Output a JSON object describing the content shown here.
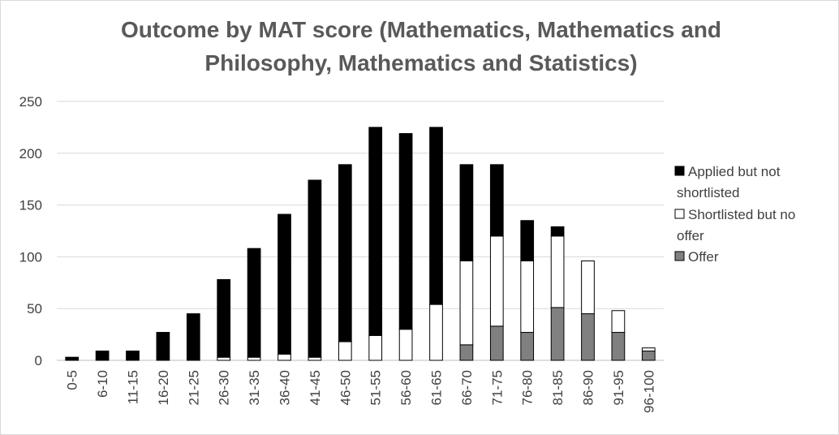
{
  "chart_data": {
    "type": "bar",
    "stacked": true,
    "title": "Outcome by MAT score (Mathematics, Mathematics and Philosophy, Mathematics and Statistics)",
    "title_lines": [
      "Outcome by MAT score (Mathematics, Mathematics and",
      "Philosophy, Mathematics and Statistics)"
    ],
    "xlabel": "",
    "ylabel": "",
    "ylim": [
      0,
      250
    ],
    "yticks": [
      0,
      50,
      100,
      150,
      200,
      250
    ],
    "grid": true,
    "legend_position": "right",
    "categories": [
      "0-5",
      "6-10",
      "11-15",
      "16-20",
      "21-25",
      "26-30",
      "31-35",
      "36-40",
      "41-45",
      "46-50",
      "51-55",
      "56-60",
      "61-65",
      "66-70",
      "71-75",
      "76-80",
      "81-85",
      "86-90",
      "91-95",
      "96-100"
    ],
    "series": [
      {
        "name": "Offer",
        "color": "#808080",
        "values": [
          0,
          0,
          0,
          0,
          0,
          0,
          0,
          0,
          0,
          0,
          0,
          0,
          0,
          15,
          33,
          27,
          51,
          45,
          27,
          9
        ]
      },
      {
        "name": "Shortlisted but no offer",
        "color": "#ffffff",
        "values": [
          0,
          0,
          0,
          0,
          0,
          3,
          3,
          6,
          3,
          18,
          24,
          30,
          54,
          81,
          87,
          69,
          69,
          51,
          21,
          3
        ]
      },
      {
        "name": "Applied but not shortlisted",
        "color": "#000000",
        "values": [
          3,
          9,
          9,
          27,
          45,
          75,
          105,
          135,
          171,
          171,
          201,
          189,
          171,
          93,
          69,
          39,
          9,
          0,
          0,
          0
        ]
      }
    ],
    "legend": [
      {
        "name_lines": [
          "Applied but not",
          "shortlisted"
        ],
        "color": "#000000"
      },
      {
        "name_lines": [
          "Shortlisted but no",
          "offer"
        ],
        "color": "#ffffff"
      },
      {
        "name_lines": [
          "Offer"
        ],
        "color": "#808080"
      }
    ],
    "colors": {
      "grid": "#d9d9d9",
      "text": "#404040",
      "title": "#595959",
      "bar_edge": "#000000"
    }
  }
}
